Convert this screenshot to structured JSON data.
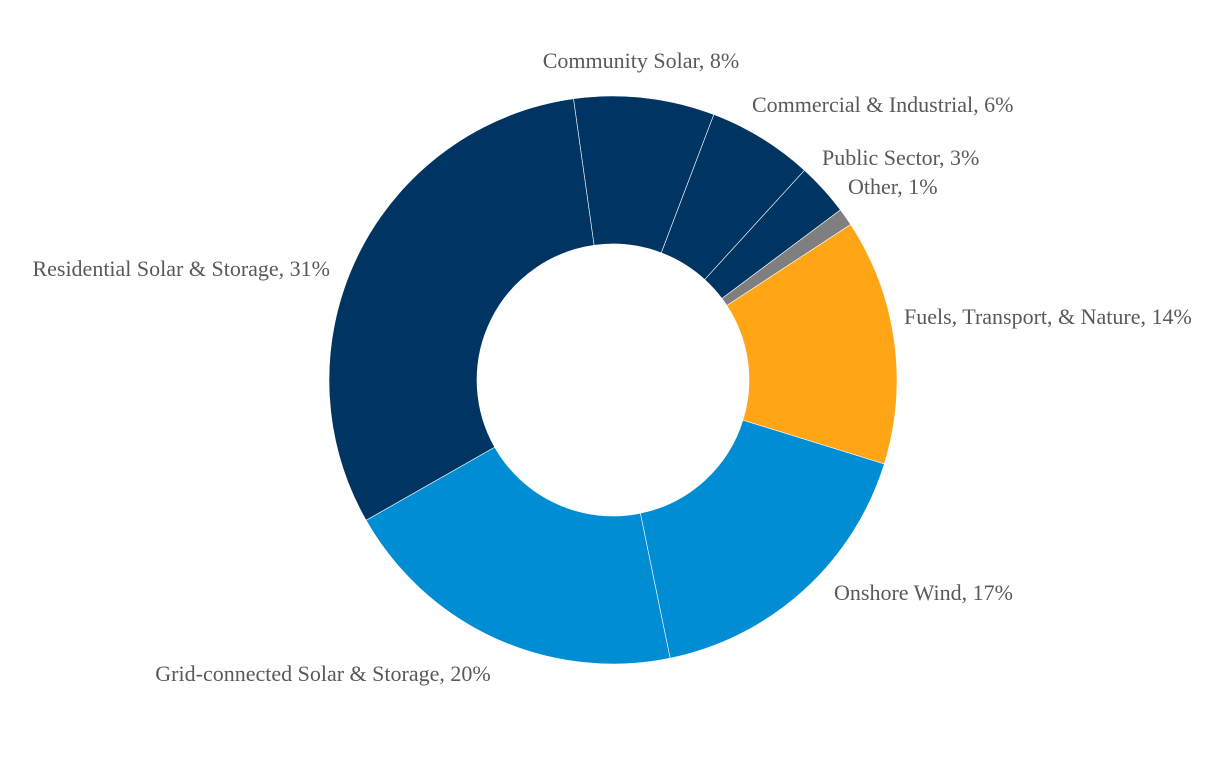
{
  "chart_data": {
    "type": "pie",
    "variant": "donut",
    "title": "",
    "legend": "none",
    "label_mode": "outside",
    "categories": [
      "Community Solar",
      "Commercial & Industrial",
      "Public Sector",
      "Other",
      "Fuels, Transport, & Nature",
      "Onshore Wind",
      "Grid-connected Solar & Storage",
      "Residential Solar & Storage"
    ],
    "values": [
      8,
      6,
      3,
      1,
      14,
      17,
      20,
      31
    ],
    "unit": "%",
    "colors": [
      "#003462",
      "#003462",
      "#003462",
      "#7F7F7F",
      "#FFA516",
      "#008DD3",
      "#008DD3",
      "#003462"
    ],
    "labels": [
      "Community Solar, 8%",
      "Commercial & Industrial, 6%",
      "Public Sector, 3%",
      "Other, 1%",
      "Fuels, Transport, & Nature, 14%",
      "Onshore Wind, 17%",
      "Grid-connected Solar & Storage, 20%",
      "Residential Solar & Storage, 31%"
    ]
  }
}
